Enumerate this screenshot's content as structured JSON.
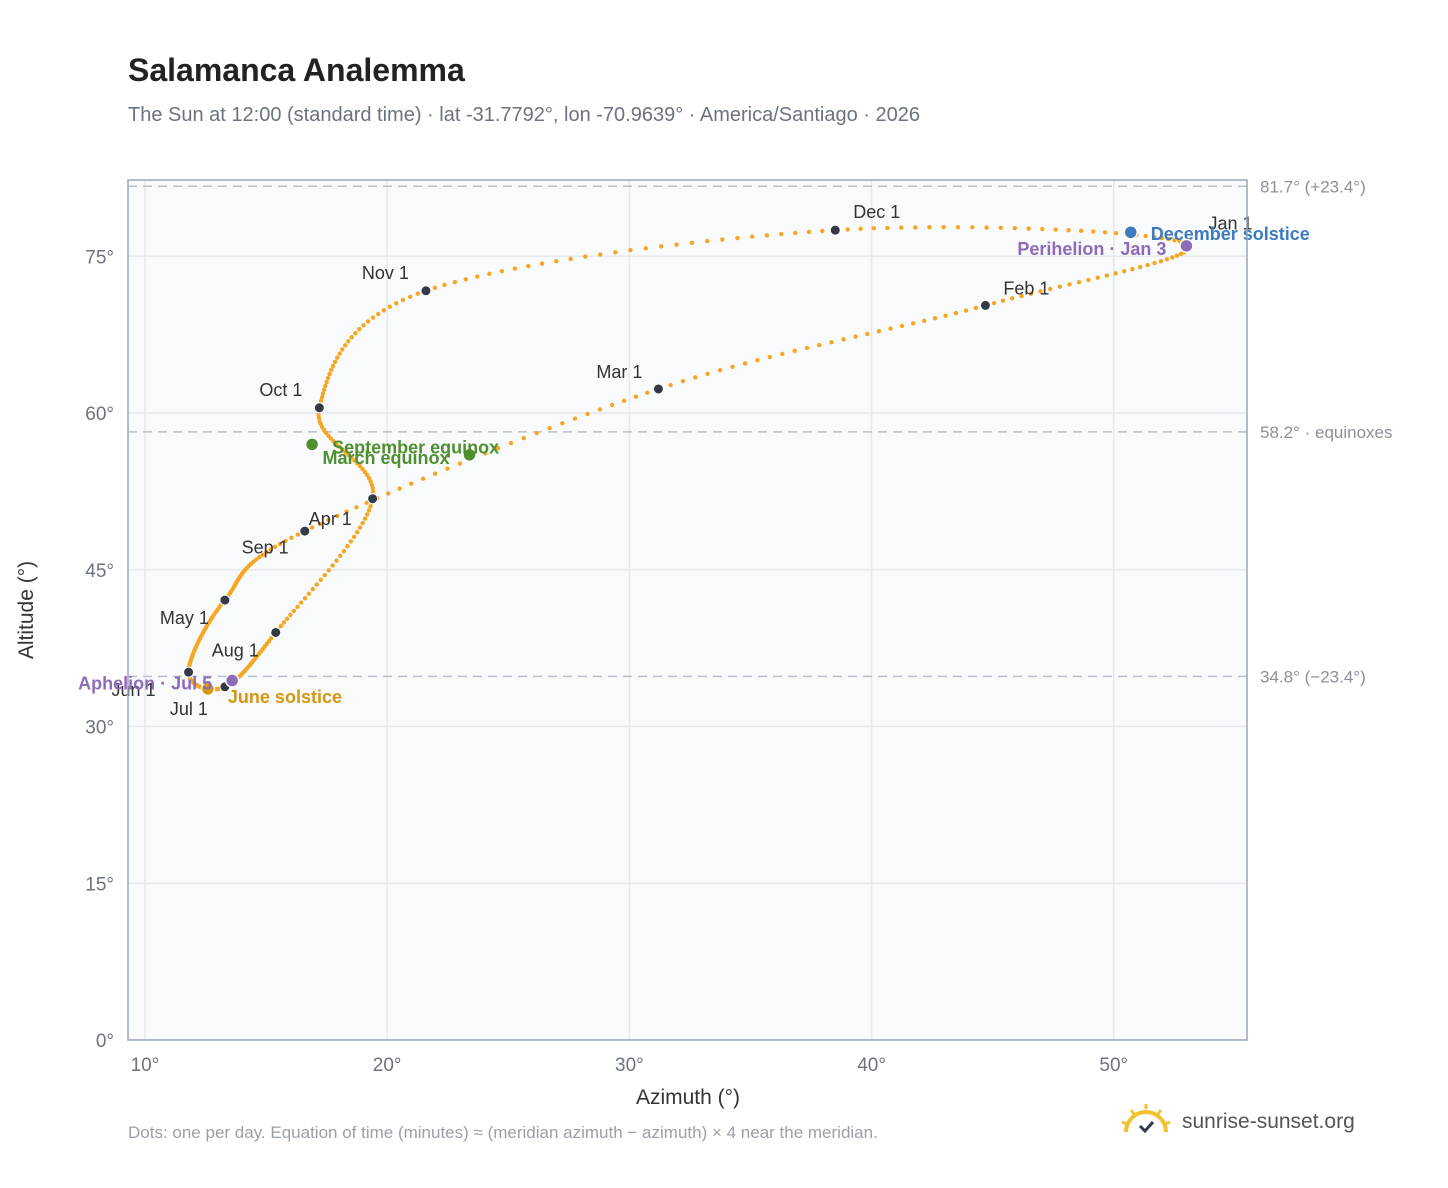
{
  "header": {
    "title": "Salamanca Analemma",
    "subtitle": "The Sun at 12:00 (standard time) · lat -31.7792°, lon -70.9639° · America/Santiago · 2026"
  },
  "footer": {
    "note": "Dots: one per day. Equation of time (minutes) ≈ (meridian azimuth − azimuth) × 4 near the meridian.",
    "brand": "sunrise-sunset.org",
    "brand_icon": "sun-check-icon"
  },
  "colors": {
    "curve": "#f5a623",
    "month_dot": "#333a45",
    "equinox": "#4e8f2f",
    "june_solstice": "#d4970f",
    "december_solstice": "#3b7bbf",
    "apsis": "#8e6bb8",
    "plot_bg": "#f9fafc",
    "grid": "#e5e8ee",
    "frame": "#9aa6b5"
  },
  "chart_data": {
    "type": "scatter",
    "title": "Salamanca Analemma",
    "xlabel": "Azimuth (°)",
    "ylabel": "Altitude (°)",
    "xlim": [
      9.3,
      55.5
    ],
    "ylim": [
      0,
      82.3
    ],
    "x_ticks": [
      10,
      20,
      30,
      40,
      50
    ],
    "x_tick_labels": [
      "10°",
      "20°",
      "30°",
      "40°",
      "50°"
    ],
    "y_ticks": [
      0,
      15,
      30,
      45,
      60,
      75
    ],
    "y_tick_labels": [
      "0°",
      "15°",
      "30°",
      "45°",
      "60°",
      "75°"
    ],
    "grid": true,
    "reference_lines": [
      {
        "y": 81.7,
        "label": "81.7° (+23.4°)"
      },
      {
        "y": 58.2,
        "label": "58.2° · equinoxes"
      },
      {
        "y": 34.8,
        "label": "34.8° (−23.4°)"
      }
    ],
    "month_points": [
      {
        "label": "Jan 1",
        "x": 53.0,
        "y": 76.2
      },
      {
        "label": "Feb 1",
        "x": 44.7,
        "y": 70.3
      },
      {
        "label": "Mar 1",
        "x": 31.2,
        "y": 62.3
      },
      {
        "label": "Apr 1",
        "x": 16.6,
        "y": 48.7
      },
      {
        "label": "May 1",
        "x": 13.3,
        "y": 42.1
      },
      {
        "label": "Jun 1",
        "x": 11.8,
        "y": 35.2
      },
      {
        "label": "Jul 1",
        "x": 13.3,
        "y": 33.8
      },
      {
        "label": "Aug 1",
        "x": 15.4,
        "y": 39.0
      },
      {
        "label": "Sep 1",
        "x": 19.4,
        "y": 51.8
      },
      {
        "label": "Oct 1",
        "x": 17.2,
        "y": 60.5
      },
      {
        "label": "Nov 1",
        "x": 21.6,
        "y": 71.7
      },
      {
        "label": "Dec 1",
        "x": 38.5,
        "y": 77.5
      }
    ],
    "events": [
      {
        "label": "March equinox",
        "x": 23.4,
        "y": 56.0,
        "kind": "equinox"
      },
      {
        "label": "September equinox",
        "x": 16.9,
        "y": 57.0,
        "kind": "equinox"
      },
      {
        "label": "June solstice",
        "x": 12.6,
        "y": 33.6,
        "kind": "june_solstice"
      },
      {
        "label": "December solstice",
        "x": 50.7,
        "y": 77.3,
        "kind": "december_solstice"
      },
      {
        "label": "Perihelion · Jan 3",
        "x": 53.0,
        "y": 76.0,
        "kind": "apsis"
      },
      {
        "label": "Aphelion · Jul 5",
        "x": 13.6,
        "y": 34.4,
        "kind": "apsis"
      }
    ],
    "legend": "none"
  }
}
